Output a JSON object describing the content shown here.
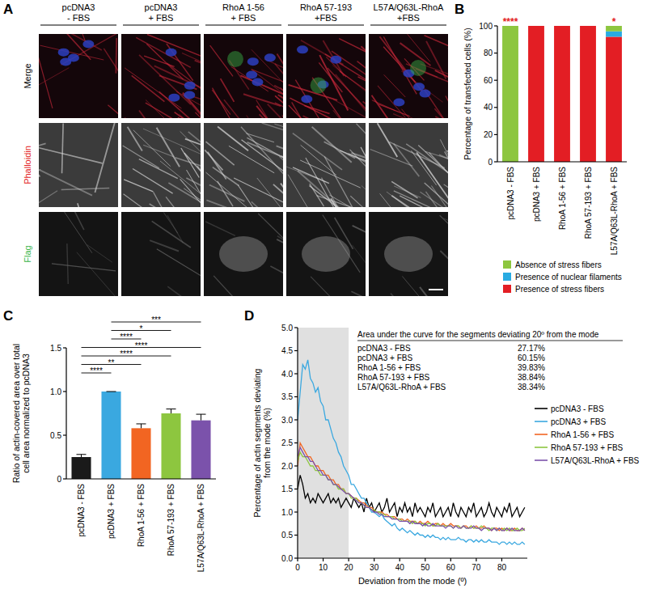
{
  "image_panel": {
    "label": "A",
    "columns": [
      [
        "pcDNA3",
        "- FBS"
      ],
      [
        "pcDNA3",
        "+ FBS"
      ],
      [
        "RhoA 1-56",
        "+ FBS"
      ],
      [
        "RhoA 57-193",
        "+FBS"
      ],
      [
        "L57A/Q63L-RhoA",
        "+FBS"
      ]
    ],
    "rows": [
      "Merge",
      "Phalloidin",
      "Flag"
    ]
  },
  "chart_data": [
    {
      "type": "bar",
      "title": "B",
      "stacked": true,
      "ylabel": [
        "Percentage of transfected cells (%)"
      ],
      "categories": [
        "pcDNA3 - FBS",
        "pcDNA3 + FBS",
        "RhoA 1-56 + FBS",
        "RhoA 57-193 + FBS",
        "L57A/Q63L-RhoA + FBS"
      ],
      "series": [
        {
          "name": "Absence of stress fibers",
          "color": "#8dc63f",
          "values": [
            100,
            0,
            0,
            0,
            4
          ]
        },
        {
          "name": "Presence of nuclear filaments",
          "color": "#29abe2",
          "values": [
            0,
            0,
            0,
            0,
            4
          ]
        },
        {
          "name": "Presence of stress fibers",
          "color": "#e31e24",
          "values": [
            0,
            100,
            100,
            100,
            92
          ]
        }
      ],
      "annotations": [
        {
          "category": 0,
          "label": "****"
        },
        {
          "category": 4,
          "label": "*"
        }
      ],
      "ylim": [
        0,
        100
      ],
      "yticks": [
        0,
        20,
        40,
        60,
        80,
        100
      ],
      "legend": "bottom"
    },
    {
      "type": "bar",
      "title": "C",
      "ylabel": [
        "Ratio of actin-covered area over total",
        "cell area normalized to pcDNA3"
      ],
      "categories": [
        "pcDNA3 - FBS",
        "pcDNA3 + FBS",
        "RhoA 1-56 + FBS",
        "RhoA 57-193 + FBS",
        "L57A/Q63L-RhoA + FBS"
      ],
      "values": [
        0.25,
        1.0,
        0.58,
        0.75,
        0.67
      ],
      "errors": [
        0.03,
        0,
        0.05,
        0.05,
        0.07
      ],
      "colors": [
        "#1a1a1a",
        "#3aa8e0",
        "#f26522",
        "#8dc63f",
        "#7b52ab"
      ],
      "comparisons": [
        {
          "from": 1,
          "to": 4,
          "label": "***"
        },
        {
          "from": 1,
          "to": 3,
          "label": "*"
        },
        {
          "from": 1,
          "to": 2,
          "label": "****"
        },
        {
          "from": 0,
          "to": 4,
          "label": "****"
        },
        {
          "from": 0,
          "to": 3,
          "label": "****"
        },
        {
          "from": 0,
          "to": 2,
          "label": "**"
        },
        {
          "from": 0,
          "to": 1,
          "label": "****"
        }
      ],
      "ylim": [
        0,
        1.5
      ],
      "yticks": [
        0,
        0.5,
        {
          "value": 1,
          "label": "1.0"
        },
        1.5
      ]
    },
    {
      "type": "line",
      "title": "D",
      "xlabel": "Deviation from the mode (º)",
      "ylabel": [
        "Percentage of actin segments deviating",
        "from the mode (%)"
      ],
      "x": [
        0,
        1,
        2,
        3,
        4,
        5,
        6,
        7,
        8,
        9,
        10,
        11,
        12,
        13,
        14,
        15,
        16,
        17,
        18,
        19,
        20,
        21,
        22,
        23,
        24,
        25,
        26,
        27,
        28,
        29,
        30,
        31,
        32,
        33,
        34,
        35,
        36,
        37,
        38,
        39,
        40,
        41,
        42,
        43,
        44,
        45,
        46,
        47,
        48,
        49,
        50,
        51,
        52,
        53,
        54,
        55,
        56,
        57,
        58,
        59,
        60,
        61,
        62,
        63,
        64,
        65,
        66,
        67,
        68,
        69,
        70,
        71,
        72,
        73,
        74,
        75,
        76,
        77,
        78,
        79,
        80,
        81,
        82,
        83,
        84,
        85,
        86,
        87,
        88,
        89
      ],
      "series": [
        {
          "name": "pcDNA3 - FBS",
          "color": "#000000",
          "values": [
            1.5,
            1.8,
            1.6,
            1.3,
            1.4,
            1.2,
            1.3,
            1.2,
            1.4,
            1.3,
            1.2,
            1.3,
            1.4,
            1.2,
            1.3,
            1.2,
            1.3,
            1.1,
            1.2,
            1.3,
            1.2,
            1.1,
            1.3,
            1.2,
            1.1,
            1.2,
            1.0,
            1.3,
            1.1,
            1.2,
            1.0,
            1.1,
            1.2,
            1.0,
            1.1,
            1.3,
            1.0,
            1.1,
            1.2,
            0.9,
            1.1,
            1.0,
            1.2,
            1.0,
            1.1,
            0.9,
            1.2,
            1.0,
            1.1,
            1.0,
            0.9,
            1.1,
            1.0,
            1.2,
            0.9,
            1.0,
            1.1,
            0.9,
            1.0,
            1.1,
            0.9,
            1.2,
            1.0,
            0.9,
            1.1,
            1.0,
            0.9,
            1.1,
            1.0,
            1.2,
            0.9,
            1.0,
            1.1,
            0.9,
            1.0,
            1.2,
            1.0,
            0.9,
            1.1,
            1.0,
            0.9,
            1.1,
            1.0,
            1.2,
            0.9,
            1.0,
            1.1,
            0.9,
            1.0,
            1.1
          ]
        },
        {
          "name": "pcDNA3 + FBS",
          "color": "#3aa8e0",
          "values": [
            3.0,
            3.6,
            4.2,
            4.1,
            4.3,
            3.9,
            3.8,
            3.6,
            3.7,
            3.4,
            3.3,
            3.0,
            3.0,
            2.8,
            2.6,
            2.5,
            2.3,
            2.2,
            2.0,
            1.9,
            1.8,
            1.6,
            1.6,
            1.5,
            1.4,
            1.3,
            1.3,
            1.2,
            1.1,
            1.0,
            1.0,
            0.95,
            0.9,
            0.95,
            0.85,
            0.8,
            0.75,
            0.7,
            0.75,
            0.65,
            0.6,
            0.65,
            0.6,
            0.55,
            0.6,
            0.55,
            0.5,
            0.55,
            0.5,
            0.5,
            0.45,
            0.5,
            0.45,
            0.5,
            0.45,
            0.45,
            0.4,
            0.45,
            0.4,
            0.45,
            0.4,
            0.4,
            0.4,
            0.45,
            0.4,
            0.4,
            0.35,
            0.4,
            0.4,
            0.35,
            0.4,
            0.35,
            0.4,
            0.35,
            0.35,
            0.4,
            0.35,
            0.35,
            0.35,
            0.3,
            0.35,
            0.35,
            0.3,
            0.35,
            0.3,
            0.35,
            0.3,
            0.3,
            0.35,
            0.3
          ]
        },
        {
          "name": "RhoA 1-56 + FBS",
          "color": "#f26522",
          "values": [
            2.0,
            2.5,
            2.4,
            2.3,
            2.2,
            2.2,
            2.1,
            2.0,
            2.0,
            1.9,
            1.9,
            1.8,
            1.8,
            1.7,
            1.7,
            1.6,
            1.6,
            1.5,
            1.5,
            1.4,
            1.4,
            1.35,
            1.3,
            1.3,
            1.25,
            1.2,
            1.2,
            1.15,
            1.1,
            1.1,
            1.05,
            1.0,
            1.0,
            1.0,
            0.95,
            0.95,
            0.9,
            0.9,
            0.9,
            0.85,
            0.85,
            0.85,
            0.8,
            0.85,
            0.8,
            0.8,
            0.8,
            0.75,
            0.8,
            0.75,
            0.75,
            0.8,
            0.75,
            0.7,
            0.75,
            0.75,
            0.7,
            0.75,
            0.7,
            0.7,
            0.75,
            0.7,
            0.7,
            0.7,
            0.65,
            0.7,
            0.7,
            0.65,
            0.7,
            0.65,
            0.7,
            0.65,
            0.65,
            0.7,
            0.65,
            0.65,
            0.6,
            0.65,
            0.65,
            0.6,
            0.65,
            0.6,
            0.65,
            0.6,
            0.6,
            0.65,
            0.6,
            0.6,
            0.65,
            0.6
          ]
        },
        {
          "name": "RhoA 57-193 + FBS",
          "color": "#8dc63f",
          "values": [
            2.1,
            2.3,
            2.2,
            2.2,
            2.1,
            2.0,
            2.0,
            1.9,
            1.9,
            1.8,
            1.8,
            1.8,
            1.7,
            1.7,
            1.6,
            1.6,
            1.5,
            1.5,
            1.5,
            1.4,
            1.4,
            1.3,
            1.3,
            1.3,
            1.2,
            1.2,
            1.15,
            1.1,
            1.1,
            1.05,
            1.05,
            1.0,
            1.0,
            0.95,
            0.95,
            0.9,
            0.9,
            0.9,
            0.85,
            0.85,
            0.85,
            0.8,
            0.8,
            0.8,
            0.8,
            0.75,
            0.8,
            0.75,
            0.75,
            0.75,
            0.7,
            0.75,
            0.75,
            0.7,
            0.7,
            0.75,
            0.7,
            0.7,
            0.7,
            0.7,
            0.7,
            0.65,
            0.7,
            0.7,
            0.65,
            0.7,
            0.65,
            0.65,
            0.7,
            0.65,
            0.65,
            0.65,
            0.7,
            0.65,
            0.65,
            0.6,
            0.65,
            0.65,
            0.6,
            0.65,
            0.6,
            0.65,
            0.6,
            0.65,
            0.6,
            0.6,
            0.65,
            0.6,
            0.6,
            0.65
          ]
        },
        {
          "name": "L57A/Q63L-RhoA + FBS",
          "color": "#7b52ab",
          "values": [
            2.2,
            2.4,
            2.3,
            2.2,
            2.2,
            2.1,
            2.1,
            2.0,
            1.9,
            1.9,
            1.8,
            1.8,
            1.7,
            1.7,
            1.6,
            1.6,
            1.55,
            1.5,
            1.45,
            1.4,
            1.4,
            1.35,
            1.3,
            1.25,
            1.2,
            1.2,
            1.15,
            1.1,
            1.1,
            1.05,
            1.0,
            1.0,
            0.95,
            0.95,
            0.9,
            0.9,
            0.9,
            0.85,
            0.85,
            0.85,
            0.8,
            0.8,
            0.8,
            0.8,
            0.75,
            0.8,
            0.75,
            0.75,
            0.75,
            0.7,
            0.75,
            0.7,
            0.7,
            0.75,
            0.7,
            0.7,
            0.7,
            0.7,
            0.65,
            0.7,
            0.7,
            0.65,
            0.7,
            0.65,
            0.65,
            0.7,
            0.65,
            0.65,
            0.65,
            0.7,
            0.65,
            0.65,
            0.6,
            0.65,
            0.65,
            0.65,
            0.6,
            0.65,
            0.6,
            0.65,
            0.6,
            0.6,
            0.65,
            0.6,
            0.65,
            0.6,
            0.6,
            0.6,
            0.65,
            0.6
          ]
        }
      ],
      "shaded_x": [
        0,
        20
      ],
      "table": {
        "title": "Area under the curve for the segments deviating 20º from the mode",
        "rows": [
          [
            "pcDNA3 - FBS",
            "27.17%"
          ],
          [
            "pcDNA3 + FBS",
            "60.15%"
          ],
          [
            "RhoA 1-56 + FBS",
            "39.83%"
          ],
          [
            "RhoA 57-193 + FBS",
            "38.84%"
          ],
          [
            "L57A/Q63L-RhoA + FBS",
            "38.34%"
          ]
        ]
      },
      "xlim": [
        0,
        90
      ],
      "xticks": [
        0,
        10,
        20,
        30,
        40,
        50,
        60,
        70,
        80
      ],
      "ylim": [
        0,
        5
      ],
      "yticks": [
        {
          "value": 0,
          "label": "0.0"
        },
        0.5,
        {
          "value": 1,
          "label": "1.0"
        },
        1.5,
        {
          "value": 2,
          "label": "2.0"
        },
        2.5,
        {
          "value": 3,
          "label": "3.0"
        },
        3.5,
        {
          "value": 4,
          "label": "4.0"
        },
        4.5,
        {
          "value": 5,
          "label": "5.0"
        }
      ],
      "legend": "right"
    }
  ]
}
